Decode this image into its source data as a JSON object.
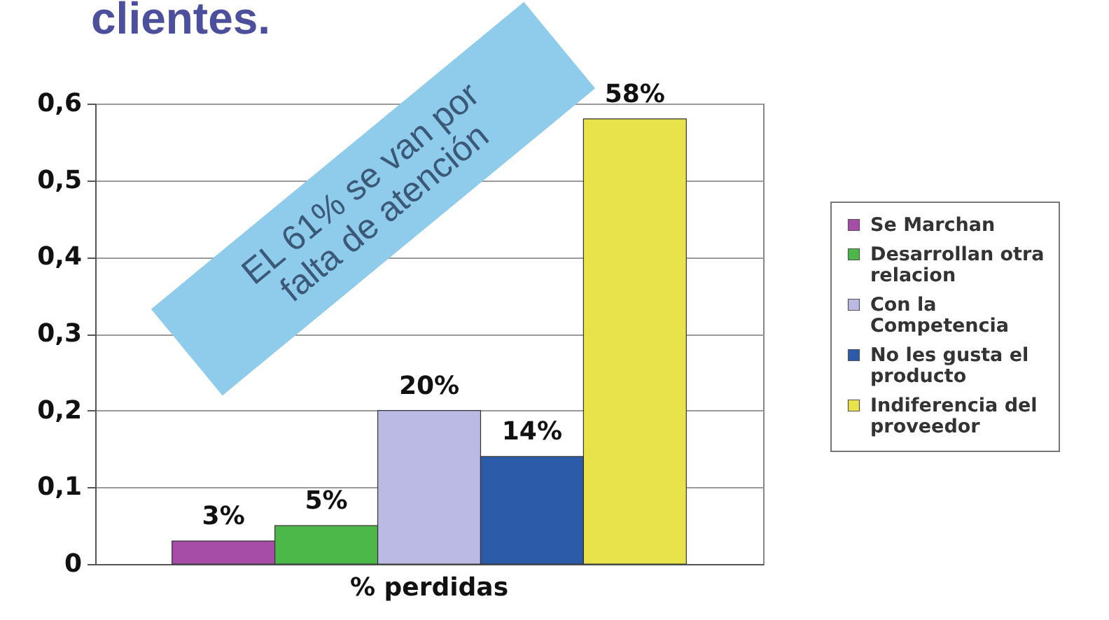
{
  "chart_data": {
    "type": "bar",
    "title": "clientes.",
    "categories": [
      "% perdidas"
    ],
    "series": [
      {
        "name": "Se Marchan",
        "color": "#a64da8",
        "values": [
          0.03
        ],
        "value_labels": [
          "3%"
        ]
      },
      {
        "name": "Desarrollan otra relacion",
        "color": "#4cb84a",
        "values": [
          0.05
        ],
        "value_labels": [
          "5%"
        ]
      },
      {
        "name": "Con la Competencia",
        "color": "#babae4",
        "values": [
          0.2
        ],
        "value_labels": [
          "20%"
        ]
      },
      {
        "name": "No les gusta el producto",
        "color": "#2b5ba9",
        "values": [
          0.14
        ],
        "value_labels": [
          "14%"
        ]
      },
      {
        "name": "Indiferencia del proveedor",
        "color": "#e9e34b",
        "values": [
          0.58
        ],
        "value_labels": [
          "58%"
        ]
      }
    ],
    "ylim": [
      0,
      0.6
    ],
    "yticks": [
      0,
      {
        "value": 0.1,
        "label": "0,1"
      },
      {
        "value": 0.2,
        "label": "0,2"
      },
      {
        "value": 0.3,
        "label": "0,3"
      },
      {
        "value": 0.4,
        "label": "0,4"
      },
      {
        "value": 0.5,
        "label": "0,5"
      },
      {
        "value": 0.6,
        "label": "0,6"
      }
    ],
    "grid": "y",
    "legend": "right",
    "annotations": [
      "EL 61% se van por falta de atención"
    ]
  }
}
